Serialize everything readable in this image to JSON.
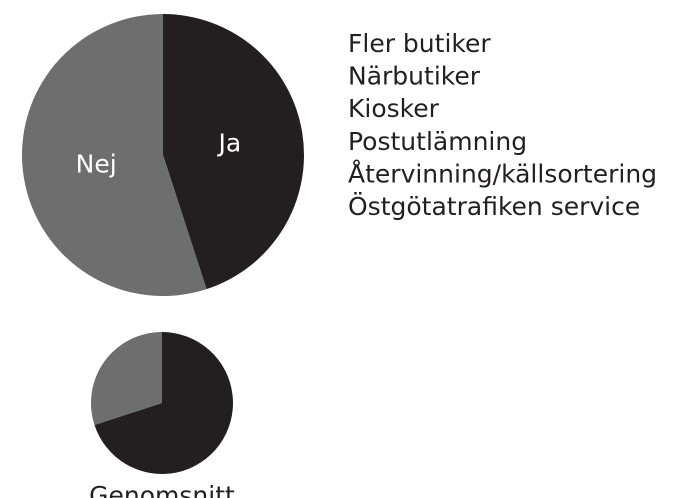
{
  "chart_data": [
    {
      "type": "pie",
      "categories": [
        "Ja",
        "Nej"
      ],
      "values": [
        45,
        55
      ],
      "colors": [
        "#231f20",
        "#6d6e70"
      ],
      "label_color": "#ffffff"
    },
    {
      "type": "pie",
      "title": "Genomsnitt",
      "categories": [
        null,
        null
      ],
      "values": [
        70,
        30
      ],
      "colors": [
        "#231f20",
        "#6d6e70"
      ]
    }
  ],
  "list": [
    "Fler butiker",
    "Närbutiker",
    "Kiosker",
    "Postutlämning",
    "Återvinning/källsortering",
    "Östgötatrafiken service"
  ]
}
